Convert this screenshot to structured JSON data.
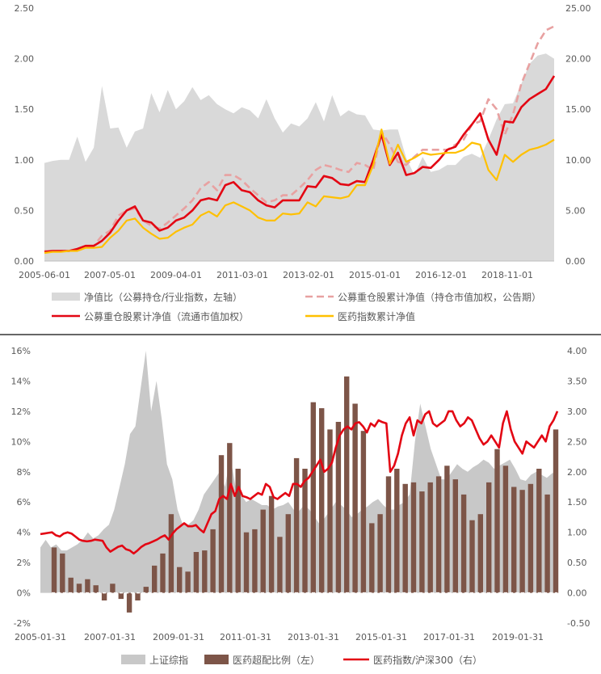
{
  "chart_data": [
    {
      "type": "area+line",
      "title": "",
      "x_ticks": [
        "2005-06-01",
        "2007-05-01",
        "2009-04-01",
        "2011-03-01",
        "2013-02-01",
        "2015-01-01",
        "2016-12-01",
        "2018-11-01"
      ],
      "y_left_ticks": [
        "0.00",
        "0.50",
        "1.00",
        "1.50",
        "2.00",
        "2.50"
      ],
      "y_right_ticks": [
        "0.00",
        "5.00",
        "10.00",
        "15.00",
        "20.00",
        "25.00"
      ],
      "ylim_left": [
        0,
        2.5
      ],
      "ylim_right": [
        0,
        25
      ],
      "legend_position": "bottom",
      "series": [
        {
          "name": "净值比（公募持仓/行业指数，左轴）",
          "kind": "area",
          "axis": "left",
          "color": "#d9d9d9",
          "values": [
            0.97,
            0.99,
            1.0,
            1.0,
            1.23,
            0.98,
            1.12,
            1.73,
            1.31,
            1.32,
            1.12,
            1.28,
            1.31,
            1.66,
            1.47,
            1.69,
            1.5,
            1.58,
            1.72,
            1.59,
            1.64,
            1.55,
            1.5,
            1.46,
            1.52,
            1.49,
            1.41,
            1.6,
            1.41,
            1.27,
            1.36,
            1.33,
            1.41,
            1.57,
            1.38,
            1.64,
            1.43,
            1.49,
            1.45,
            1.44,
            1.3,
            1.29,
            1.3,
            1.3,
            1.02,
            0.85,
            1.03,
            0.88,
            0.9,
            0.95,
            0.95,
            1.03,
            1.06,
            1.02,
            1.2,
            1.4,
            1.55,
            1.56,
            1.75,
            1.95,
            2.03,
            2.05,
            2.0
          ]
        },
        {
          "name": "公募重仓股累计净值（持仓市值加权，公告期）",
          "kind": "line",
          "axis": "right",
          "color": "#e8a1a1",
          "dash": true,
          "values": [
            1.0,
            1.0,
            1.0,
            1.0,
            1.1,
            1.5,
            1.5,
            2.5,
            3.0,
            4.5,
            5.0,
            5.2,
            4.0,
            3.5,
            3.2,
            3.8,
            4.5,
            5.2,
            6.0,
            7.2,
            7.8,
            7.0,
            8.5,
            8.5,
            8.0,
            7.2,
            6.5,
            5.8,
            6.0,
            6.5,
            6.5,
            7.2,
            8.0,
            9.0,
            9.5,
            9.3,
            9.0,
            8.8,
            9.7,
            9.5,
            9.0,
            12.8,
            11.5,
            9.8,
            9.5,
            10.3,
            11.0,
            11.0,
            11.0,
            11.0,
            11.5,
            12.0,
            13.5,
            13.8,
            16.0,
            15.0,
            12.5,
            14.5,
            17.5,
            19.5,
            21.5,
            22.8,
            23.2
          ]
        },
        {
          "name": "公募重仓股累计净值（流通市值加权）",
          "kind": "line",
          "axis": "right",
          "color": "#e30613",
          "dash": false,
          "values": [
            0.9,
            1.0,
            1.0,
            1.0,
            1.2,
            1.5,
            1.5,
            2.0,
            2.8,
            4.0,
            5.0,
            5.4,
            4.0,
            3.8,
            3.0,
            3.3,
            4.0,
            4.3,
            5.0,
            6.0,
            6.2,
            6.0,
            7.5,
            7.8,
            7.0,
            6.8,
            6.0,
            5.5,
            5.3,
            6.0,
            6.0,
            6.0,
            7.4,
            7.3,
            8.4,
            8.2,
            7.6,
            7.5,
            7.9,
            7.8,
            10.0,
            12.5,
            9.5,
            10.7,
            8.5,
            8.7,
            9.3,
            9.2,
            10.0,
            11.0,
            11.3,
            12.5,
            13.5,
            14.6,
            12.0,
            10.5,
            13.8,
            13.7,
            15.2,
            16.0,
            16.5,
            17.0,
            18.3
          ]
        },
        {
          "name": "医药指数累计净值",
          "kind": "line",
          "axis": "right",
          "color": "#ffc000",
          "dash": false,
          "values": [
            0.8,
            0.9,
            0.9,
            1.0,
            1.0,
            1.3,
            1.3,
            1.4,
            2.3,
            3.0,
            4.0,
            4.2,
            3.3,
            2.7,
            2.2,
            2.3,
            2.9,
            3.3,
            3.6,
            4.5,
            4.9,
            4.4,
            5.5,
            5.8,
            5.4,
            5.0,
            4.3,
            4.0,
            4.0,
            4.7,
            4.6,
            4.7,
            5.8,
            5.4,
            6.4,
            6.3,
            6.2,
            6.4,
            7.5,
            7.5,
            9.5,
            13.0,
            9.6,
            11.5,
            9.8,
            10.2,
            10.7,
            10.5,
            10.6,
            10.7,
            10.7,
            11.0,
            11.7,
            11.5,
            9.0,
            8.0,
            10.5,
            9.8,
            10.5,
            11.0,
            11.2,
            11.5,
            12.0
          ]
        }
      ]
    },
    {
      "type": "area+bar+line",
      "title": "",
      "x_ticks": [
        "2005-01-31",
        "2007-01-31",
        "2009-01-31",
        "2011-01-31",
        "2013-01-31",
        "2015-01-31",
        "2017-01-31",
        "2019-01-31"
      ],
      "y_left_ticks": [
        "16%",
        "14%",
        "12%",
        "10%",
        "8%",
        "6%",
        "4%",
        "2%",
        "0%",
        "-2%"
      ],
      "y_right_ticks": [
        "4.00",
        "3.50",
        "3.00",
        "2.50",
        "2.00",
        "1.50",
        "1.00",
        "0.50",
        "0.00",
        "-0.50"
      ],
      "ylim_left": [
        -2,
        16
      ],
      "ylim_right": [
        -0.5,
        4
      ],
      "legend_position": "bottom",
      "series": [
        {
          "name": "上证综指",
          "kind": "area",
          "axis": "left",
          "color": "#c8c8c8",
          "values": [
            3.0,
            3.5,
            3.0,
            3.2,
            2.8,
            2.8,
            3.0,
            3.2,
            3.5,
            4.0,
            3.6,
            3.8,
            4.2,
            4.5,
            5.5,
            7.0,
            8.5,
            10.5,
            11.0,
            13.5,
            16.0,
            12.0,
            14.0,
            11.5,
            8.5,
            7.5,
            5.5,
            4.5,
            4.5,
            4.8,
            5.5,
            6.5,
            7.0,
            7.5,
            8.0,
            7.0,
            9.0,
            7.0,
            6.5,
            6.0,
            6.2,
            6.0,
            5.8,
            5.8,
            5.5,
            5.7,
            5.8,
            6.0,
            5.5,
            5.4,
            5.8,
            5.5,
            5.0,
            4.5,
            5.0,
            5.5,
            6.0,
            5.8,
            5.5,
            5.0,
            5.2,
            5.5,
            5.7,
            6.0,
            6.2,
            5.8,
            5.5,
            5.5,
            5.8,
            6.0,
            6.5,
            10.0,
            12.5,
            11.0,
            9.5,
            8.5,
            7.5,
            7.5,
            8.0,
            8.5,
            8.2,
            8.0,
            8.3,
            8.5,
            8.8,
            8.6,
            8.2,
            8.4,
            8.6,
            8.8,
            8.2,
            7.5,
            7.4,
            7.8,
            8.0,
            7.8,
            7.6,
            7.9,
            8.0
          ]
        },
        {
          "name": "医药超配比例（左）",
          "kind": "bar",
          "axis": "left",
          "color": "#7d5548",
          "values": [
            3.0,
            2.6,
            1.0,
            0.6,
            0.9,
            0.5,
            -0.5,
            0.6,
            -0.4,
            -1.3,
            -0.5,
            0.4,
            1.8,
            2.6,
            5.2,
            1.7,
            1.4,
            2.7,
            2.8,
            4.2,
            9.1,
            9.9,
            8.2,
            4.0,
            4.2,
            5.5,
            6.4,
            3.7,
            5.2,
            8.9,
            8.2,
            12.6,
            12.2,
            10.8,
            11.3,
            14.3,
            12.5,
            10.7,
            4.6,
            5.2,
            7.7,
            8.2,
            7.2,
            7.3,
            6.7,
            7.3,
            7.7,
            8.4,
            7.5,
            6.5,
            4.8,
            5.2,
            7.3,
            9.5,
            8.4,
            7.0,
            6.8,
            7.2,
            8.2,
            6.5,
            10.8
          ]
        },
        {
          "name": "医药指数/沪深300（右）",
          "kind": "line",
          "axis": "right",
          "color": "#e30613",
          "values": [
            0.97,
            0.98,
            0.99,
            1.0,
            0.95,
            0.93,
            0.98,
            1.0,
            0.98,
            0.93,
            0.88,
            0.86,
            0.85,
            0.86,
            0.88,
            0.87,
            0.86,
            0.75,
            0.68,
            0.72,
            0.76,
            0.78,
            0.72,
            0.7,
            0.65,
            0.7,
            0.76,
            0.8,
            0.82,
            0.85,
            0.88,
            0.92,
            0.95,
            0.88,
            0.98,
            1.05,
            1.1,
            1.15,
            1.1,
            1.1,
            1.12,
            1.05,
            1.0,
            1.15,
            1.3,
            1.35,
            1.55,
            1.6,
            1.55,
            1.8,
            1.6,
            1.75,
            1.6,
            1.58,
            1.55,
            1.6,
            1.65,
            1.62,
            1.8,
            1.75,
            1.58,
            1.55,
            1.6,
            1.65,
            1.6,
            1.8,
            1.8,
            1.75,
            1.85,
            1.9,
            2.0,
            2.1,
            2.2,
            2.0,
            2.05,
            2.15,
            2.4,
            2.6,
            2.7,
            2.75,
            2.7,
            2.8,
            2.82,
            2.75,
            2.65,
            2.8,
            2.75,
            2.85,
            2.82,
            2.8,
            2.0,
            2.1,
            2.3,
            2.6,
            2.8,
            2.9,
            2.6,
            2.85,
            2.8,
            2.95,
            3.0,
            2.8,
            2.75,
            2.8,
            2.85,
            3.0,
            3.0,
            2.85,
            2.75,
            2.8,
            2.9,
            2.85,
            2.7,
            2.55,
            2.45,
            2.5,
            2.6,
            2.5,
            2.4,
            2.8,
            3.0,
            2.7,
            2.5,
            2.4,
            2.3,
            2.5,
            2.45,
            2.4,
            2.5,
            2.6,
            2.5,
            2.75,
            2.85,
            3.0
          ]
        }
      ]
    }
  ]
}
